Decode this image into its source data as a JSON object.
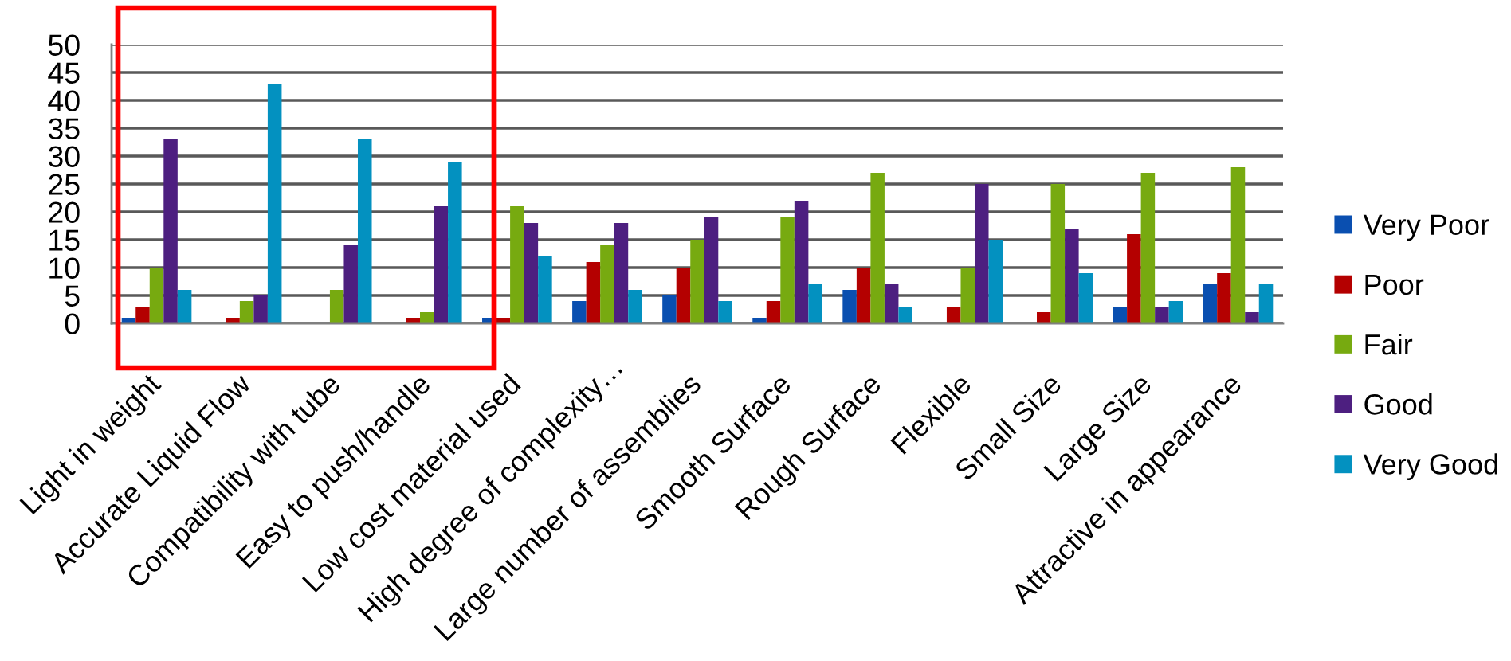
{
  "chart_data": {
    "type": "bar",
    "categories": [
      "Light in weight",
      "Accurate Liquid Flow",
      "Compatibility with tube",
      "Easy to push/handle",
      "Low cost material used",
      "High degree of complexity…",
      "Large number of assemblies",
      "Smooth Surface",
      "Rough Surface",
      "Flexible",
      "Small Size",
      "Large Size",
      "Attractive in appearance"
    ],
    "series": [
      {
        "name": "Very Poor",
        "color": "#0a4fb0",
        "values": [
          1,
          0,
          0,
          0,
          1,
          4,
          5,
          1,
          6,
          0,
          0,
          3,
          7
        ]
      },
      {
        "name": "Poor",
        "color": "#b40000",
        "values": [
          3,
          1,
          0,
          1,
          1,
          11,
          10,
          4,
          10,
          3,
          2,
          16,
          9
        ]
      },
      {
        "name": "Fair",
        "color": "#77aa10",
        "values": [
          10,
          4,
          6,
          2,
          21,
          14,
          15,
          19,
          27,
          10,
          25,
          27,
          28
        ]
      },
      {
        "name": "Good",
        "color": "#4d1f80",
        "values": [
          33,
          5,
          14,
          21,
          18,
          18,
          19,
          22,
          7,
          25,
          17,
          3,
          2
        ]
      },
      {
        "name": "Very Good",
        "color": "#0391c0",
        "values": [
          6,
          43,
          33,
          29,
          12,
          6,
          4,
          7,
          3,
          15,
          9,
          4,
          7
        ]
      }
    ],
    "ylim": [
      0,
      50
    ],
    "yticks": [
      0,
      5,
      10,
      15,
      20,
      25,
      30,
      35,
      40,
      45,
      50
    ],
    "grid": "y",
    "legend": "right"
  }
}
